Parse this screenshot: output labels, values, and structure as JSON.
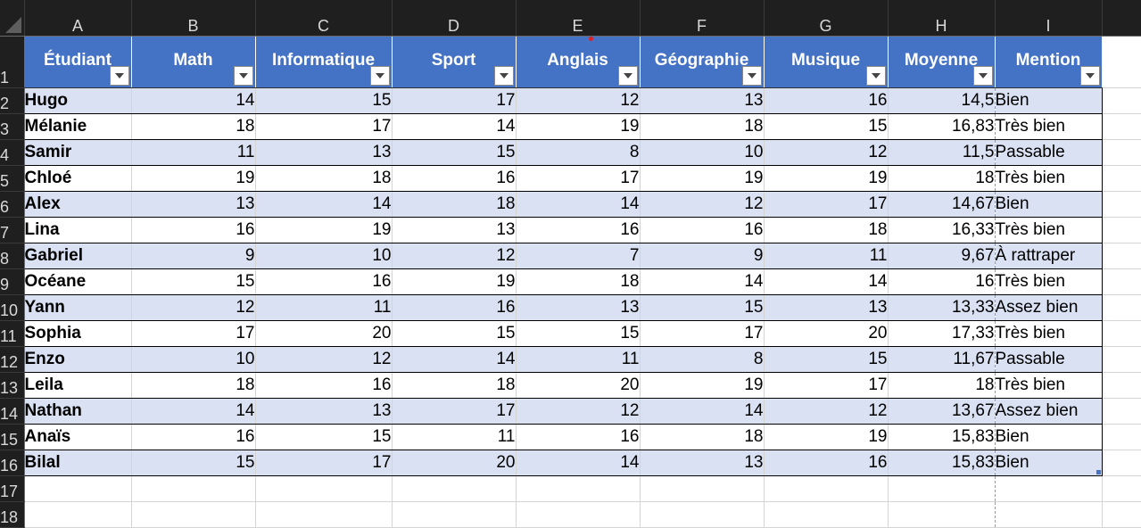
{
  "columns": [
    "A",
    "B",
    "C",
    "D",
    "E",
    "F",
    "G",
    "H",
    "I"
  ],
  "header_row_number": "1",
  "headers": [
    "Étudiant",
    "Math",
    "Informatique",
    "Sport",
    "Anglais",
    "Géographie",
    "Musique",
    "Moyenne",
    "Mention"
  ],
  "rows": [
    {
      "n": "2",
      "cells": [
        "Hugo",
        "14",
        "15",
        "17",
        "12",
        "13",
        "16",
        "14,5",
        "Bien"
      ]
    },
    {
      "n": "3",
      "cells": [
        "Mélanie",
        "18",
        "17",
        "14",
        "19",
        "18",
        "15",
        "16,83",
        "Très bien"
      ]
    },
    {
      "n": "4",
      "cells": [
        "Samir",
        "11",
        "13",
        "15",
        "8",
        "10",
        "12",
        "11,5",
        "Passable"
      ]
    },
    {
      "n": "5",
      "cells": [
        "Chloé",
        "19",
        "18",
        "16",
        "17",
        "19",
        "19",
        "18",
        "Très bien"
      ]
    },
    {
      "n": "6",
      "cells": [
        "Alex",
        "13",
        "14",
        "18",
        "14",
        "12",
        "17",
        "14,67",
        "Bien"
      ]
    },
    {
      "n": "7",
      "cells": [
        "Lina",
        "16",
        "19",
        "13",
        "16",
        "16",
        "18",
        "16,33",
        "Très bien"
      ]
    },
    {
      "n": "8",
      "cells": [
        "Gabriel",
        "9",
        "10",
        "12",
        "7",
        "9",
        "11",
        "9,67",
        "À rattraper"
      ]
    },
    {
      "n": "9",
      "cells": [
        "Océane",
        "15",
        "16",
        "19",
        "18",
        "14",
        "14",
        "16",
        "Très bien"
      ]
    },
    {
      "n": "10",
      "cells": [
        "Yann",
        "12",
        "11",
        "16",
        "13",
        "15",
        "13",
        "13,33",
        "Assez bien"
      ]
    },
    {
      "n": "11",
      "cells": [
        "Sophia",
        "17",
        "20",
        "15",
        "15",
        "17",
        "20",
        "17,33",
        "Très bien"
      ]
    },
    {
      "n": "12",
      "cells": [
        "Enzo",
        "10",
        "12",
        "14",
        "11",
        "8",
        "15",
        "11,67",
        "Passable"
      ]
    },
    {
      "n": "13",
      "cells": [
        "Leila",
        "18",
        "16",
        "18",
        "20",
        "19",
        "17",
        "18",
        "Très bien"
      ]
    },
    {
      "n": "14",
      "cells": [
        "Nathan",
        "14",
        "13",
        "17",
        "12",
        "14",
        "12",
        "13,67",
        "Assez bien"
      ]
    },
    {
      "n": "15",
      "cells": [
        "Anaïs",
        "16",
        "15",
        "11",
        "16",
        "18",
        "19",
        "15,83",
        "Bien"
      ]
    },
    {
      "n": "16",
      "cells": [
        "Bilal",
        "15",
        "17",
        "20",
        "14",
        "13",
        "16",
        "15,83",
        "Bien"
      ]
    }
  ],
  "empty_rows": [
    "17",
    "18"
  ],
  "colors": {
    "header_bg": "#4472c4",
    "band_bg": "#d9e1f2",
    "ui_dark": "#1f1f1f"
  },
  "icons": {
    "filter": "filter-dropdown-icon",
    "select_all": "select-all-triangle-icon"
  }
}
